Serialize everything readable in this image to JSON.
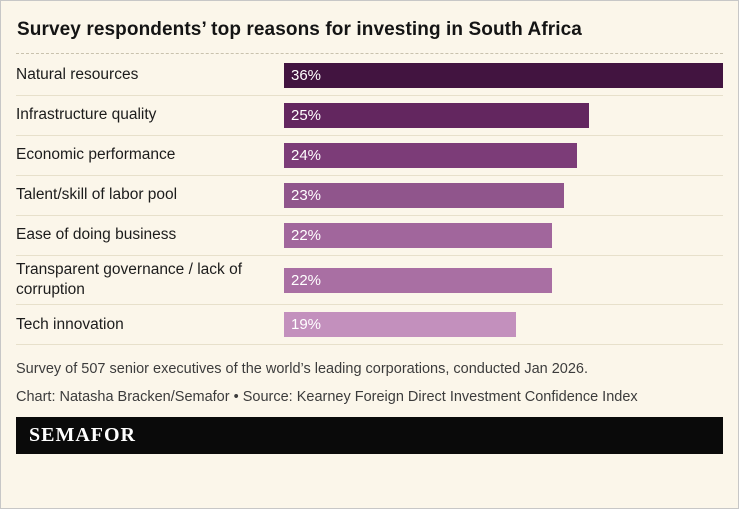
{
  "title": "Survey respondents’ top reasons for investing in South Africa",
  "chart_data": {
    "type": "bar",
    "orientation": "horizontal",
    "title": "Survey respondents’ top reasons for investing in South Africa",
    "categories": [
      "Natural resources",
      "Infrastructure quality",
      "Economic performance",
      "Talent/skill of labor pool",
      "Ease of doing business",
      "Transparent governance / lack of corruption",
      "Tech innovation"
    ],
    "values": [
      36,
      25,
      24,
      23,
      22,
      22,
      19
    ],
    "value_labels": [
      "36%",
      "25%",
      "24%",
      "23%",
      "22%",
      "22%",
      "19%"
    ],
    "bar_colors": [
      "#421440",
      "#63265f",
      "#7c3c78",
      "#90558c",
      "#a1669c",
      "#a96fa3",
      "#c390bd"
    ],
    "xlim": [
      0,
      36
    ],
    "xlabel": "",
    "ylabel": "",
    "grid": false,
    "legend": false,
    "value_label_position": "inside-left",
    "value_label_color": "#ffffff"
  },
  "footer": {
    "note": "Survey of 507 senior executives of the world’s leading corporations, conducted Jan 2026.",
    "credit": "Chart: Natasha Bracken/Semafor • Source: Kearney Foreign Direct Investment Confidence Index",
    "brand": "SEMAFOR"
  },
  "colors": {
    "background": "#fbf6ea",
    "border": "#c7c7c7",
    "row_separator": "#e7e0cb",
    "title_separator": "#c9c2ae",
    "brand_bar": "#0a0a0a",
    "note_text": "#3c3c3c",
    "title_text": "#141414"
  }
}
